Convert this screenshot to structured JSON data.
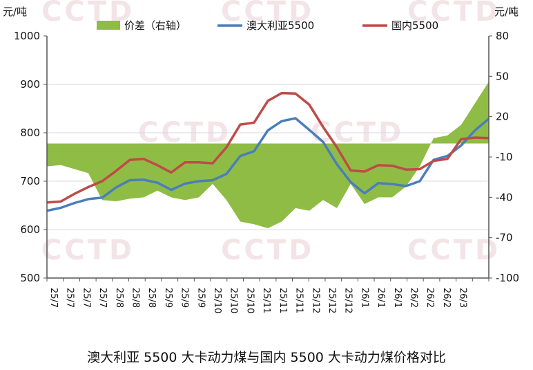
{
  "chart_data": {
    "type": "line",
    "title": "澳大利亚 5500 大卡动力煤与国内 5500 大卡动力煤价格对比",
    "left_unit": "元/吨",
    "right_unit": "元/吨",
    "ylim": [
      500,
      1000
    ],
    "yticks": [
      500,
      600,
      700,
      800,
      900,
      1000
    ],
    "y2lim": [
      -100,
      80
    ],
    "y2ticks": [
      -100,
      -70,
      -40,
      -10,
      20,
      50,
      80
    ],
    "xtick_labels": [
      "25/7",
      "25/7",
      "25/7",
      "25/7",
      "25/8",
      "25/8",
      "25/8",
      "25/9",
      "25/9",
      "25/9",
      "25/10",
      "25/10",
      "25/10",
      "25/11",
      "25/11",
      "25/11",
      "25/12",
      "25/12",
      "25/12",
      "26/1",
      "26/1",
      "26/1",
      "26/2",
      "26/2",
      "26/2",
      "26/3"
    ],
    "x_points": 33,
    "series": [
      {
        "name": "价差（右轴）",
        "type": "area",
        "axis": "right",
        "color": "#8fbc45",
        "values": [
          -17,
          -16,
          -19,
          -22,
          -42,
          -43,
          -41,
          -40,
          -35,
          -40,
          -42,
          -40,
          -30,
          -42,
          -58,
          -60,
          -63,
          -58,
          -48,
          -50,
          -42,
          -48,
          -30,
          -45,
          -40,
          -40,
          -32,
          -17,
          4,
          6,
          14,
          30,
          46
        ]
      },
      {
        "name": "澳大利亚5500",
        "type": "line",
        "axis": "left",
        "color": "#4a7ebb",
        "values": [
          639,
          645,
          655,
          663,
          666,
          687,
          702,
          703,
          697,
          682,
          695,
          700,
          702,
          715,
          752,
          762,
          805,
          824,
          830,
          806,
          781,
          735,
          698,
          675,
          696,
          694,
          690,
          700,
          744,
          752,
          774,
          805,
          829
        ]
      },
      {
        "name": "国内5500",
        "type": "line",
        "axis": "left",
        "color": "#be4b48",
        "values": [
          656,
          658,
          674,
          688,
          700,
          721,
          744,
          746,
          733,
          718,
          739,
          739,
          737,
          770,
          817,
          821,
          866,
          882,
          881,
          858,
          812,
          770,
          722,
          720,
          733,
          732,
          724,
          725,
          742,
          746,
          787,
          790,
          789
        ]
      }
    ],
    "watermark": "CCTD",
    "grid": "horizontal",
    "legend": "top"
  }
}
